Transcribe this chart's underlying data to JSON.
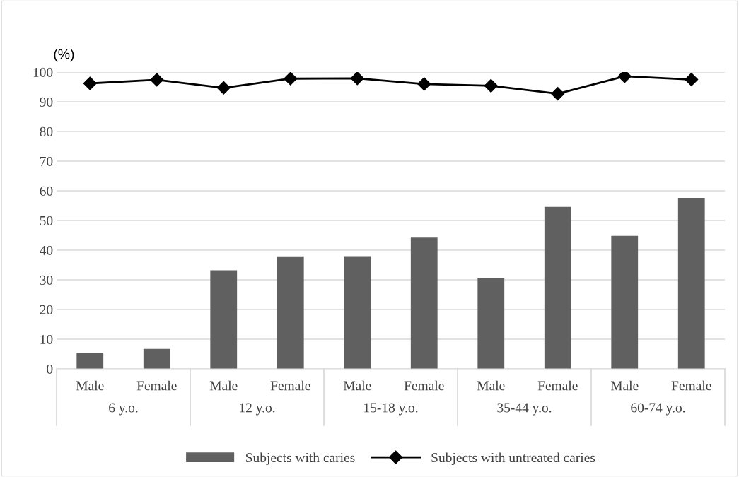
{
  "chart_data": {
    "type": "bar",
    "ylabel": "(%)",
    "categories": [
      "Male",
      "Female",
      "Male",
      "Female",
      "Male",
      "Female",
      "Male",
      "Female",
      "Male",
      "Female"
    ],
    "annotations": [
      "6 y.o.",
      "12 y.o.",
      "15-18 y.o.",
      "35-44 y.o.",
      "60-74 y.o."
    ],
    "series": [
      {
        "name": "Subjects with caries",
        "color": "#606060",
        "values": [
          5.4,
          6.7,
          33.2,
          37.9,
          38.0,
          44.2,
          30.7,
          54.6,
          44.8,
          57.6
        ]
      },
      {
        "name": "Subjects with untreated caries",
        "type": "line",
        "color": "#000000",
        "marker": "diamond",
        "values": [
          96.2,
          97.4,
          94.7,
          97.8,
          97.9,
          96.0,
          95.4,
          92.7,
          98.6,
          97.5
        ]
      }
    ],
    "ylim": [
      0,
      100
    ],
    "yticks": [
      0,
      10,
      20,
      30,
      40,
      50,
      60,
      70,
      80,
      90,
      100
    ],
    "grid": "y",
    "legend": "bottom"
  }
}
